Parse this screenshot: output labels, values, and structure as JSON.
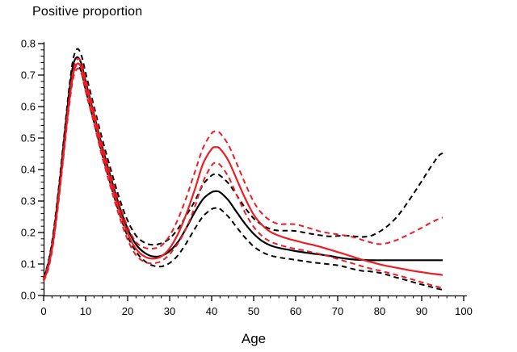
{
  "chart_data": {
    "type": "line",
    "title": "Positive proportion",
    "xlabel": "Age",
    "ylabel": "",
    "xlim": [
      0,
      100
    ],
    "ylim": [
      0.0,
      0.8
    ],
    "grid": false,
    "legend": "none",
    "x_tick_labels": [
      "0",
      "10",
      "20",
      "30",
      "40",
      "50",
      "60",
      "70",
      "80",
      "90",
      "100"
    ],
    "y_tick_labels": [
      "0.0",
      "0.1",
      "0.2",
      "0.3",
      "0.4",
      "0.5",
      "0.6",
      "0.7",
      "0.8"
    ],
    "x_minor_step": 2,
    "y_minor_step": 0.02,
    "axis_color": "#000000",
    "colors": {
      "black_series": "#000000",
      "red_series": "#ee1c23"
    },
    "x": [
      0,
      1,
      2,
      3,
      4,
      5,
      6,
      7,
      8,
      9,
      10,
      12,
      14,
      16,
      18,
      20,
      22,
      24,
      26,
      28,
      30,
      32,
      34,
      36,
      38,
      40,
      41,
      42,
      44,
      46,
      48,
      50,
      52,
      54,
      56,
      58,
      60,
      62,
      64,
      66,
      68,
      70,
      72,
      74,
      76,
      78,
      80,
      82,
      84,
      86,
      88,
      90,
      92,
      94,
      95
    ],
    "series": [
      {
        "name": "black-estimate",
        "style": "solid",
        "color": "#000000",
        "values": [
          0.052,
          0.095,
          0.16,
          0.26,
          0.38,
          0.51,
          0.635,
          0.73,
          0.757,
          0.735,
          0.68,
          0.575,
          0.47,
          0.375,
          0.285,
          0.212,
          0.162,
          0.136,
          0.124,
          0.126,
          0.141,
          0.17,
          0.215,
          0.265,
          0.307,
          0.328,
          0.331,
          0.328,
          0.302,
          0.264,
          0.227,
          0.196,
          0.173,
          0.159,
          0.151,
          0.146,
          0.141,
          0.137,
          0.133,
          0.13,
          0.126,
          0.121,
          0.117,
          0.114,
          0.113,
          0.112,
          0.112,
          0.112,
          0.112,
          0.112,
          0.112,
          0.112,
          0.112,
          0.112,
          0.112
        ]
      },
      {
        "name": "black-upper-band",
        "style": "dashed",
        "color": "#000000",
        "values": [
          0.056,
          0.1,
          0.17,
          0.272,
          0.393,
          0.523,
          0.65,
          0.748,
          0.783,
          0.762,
          0.707,
          0.6,
          0.495,
          0.4,
          0.31,
          0.238,
          0.19,
          0.168,
          0.161,
          0.166,
          0.181,
          0.212,
          0.255,
          0.3,
          0.353,
          0.381,
          0.385,
          0.381,
          0.356,
          0.318,
          0.278,
          0.245,
          0.224,
          0.211,
          0.206,
          0.206,
          0.205,
          0.2,
          0.195,
          0.191,
          0.188,
          0.189,
          0.19,
          0.188,
          0.186,
          0.19,
          0.203,
          0.222,
          0.248,
          0.283,
          0.322,
          0.363,
          0.405,
          0.443,
          0.452
        ]
      },
      {
        "name": "black-lower-band",
        "style": "dashed",
        "color": "#000000",
        "values": [
          0.048,
          0.088,
          0.15,
          0.248,
          0.367,
          0.495,
          0.617,
          0.708,
          0.731,
          0.71,
          0.653,
          0.55,
          0.445,
          0.35,
          0.262,
          0.188,
          0.139,
          0.11,
          0.095,
          0.092,
          0.103,
          0.128,
          0.167,
          0.212,
          0.252,
          0.274,
          0.278,
          0.275,
          0.25,
          0.216,
          0.183,
          0.156,
          0.138,
          0.127,
          0.121,
          0.117,
          0.113,
          0.109,
          0.105,
          0.102,
          0.099,
          0.096,
          0.09,
          0.083,
          0.078,
          0.076,
          0.072,
          0.065,
          0.057,
          0.05,
          0.042,
          0.035,
          0.028,
          0.021,
          0.018
        ]
      },
      {
        "name": "red-estimate",
        "style": "solid",
        "color": "#ee1c23",
        "values": [
          0.048,
          0.085,
          0.148,
          0.243,
          0.36,
          0.483,
          0.605,
          0.7,
          0.736,
          0.722,
          0.668,
          0.567,
          0.457,
          0.362,
          0.272,
          0.197,
          0.148,
          0.124,
          0.117,
          0.124,
          0.15,
          0.196,
          0.26,
          0.337,
          0.42,
          0.465,
          0.471,
          0.466,
          0.428,
          0.368,
          0.308,
          0.257,
          0.224,
          0.202,
          0.19,
          0.181,
          0.174,
          0.167,
          0.161,
          0.154,
          0.146,
          0.138,
          0.13,
          0.121,
          0.113,
          0.106,
          0.099,
          0.093,
          0.088,
          0.083,
          0.078,
          0.074,
          0.07,
          0.067,
          0.065
        ]
      },
      {
        "name": "red-upper-band",
        "style": "dashed",
        "color": "#ee1c23",
        "values": [
          0.052,
          0.092,
          0.156,
          0.252,
          0.37,
          0.494,
          0.617,
          0.712,
          0.75,
          0.74,
          0.688,
          0.588,
          0.478,
          0.383,
          0.293,
          0.218,
          0.17,
          0.152,
          0.149,
          0.158,
          0.19,
          0.243,
          0.312,
          0.392,
          0.47,
          0.515,
          0.521,
          0.516,
          0.478,
          0.418,
          0.355,
          0.298,
          0.26,
          0.238,
          0.227,
          0.227,
          0.226,
          0.219,
          0.211,
          0.203,
          0.198,
          0.194,
          0.19,
          0.184,
          0.176,
          0.168,
          0.163,
          0.167,
          0.176,
          0.188,
          0.201,
          0.215,
          0.23,
          0.243,
          0.248
        ]
      },
      {
        "name": "red-lower-band",
        "style": "dashed",
        "color": "#ee1c23",
        "values": [
          0.045,
          0.079,
          0.14,
          0.234,
          0.35,
          0.472,
          0.592,
          0.687,
          0.72,
          0.705,
          0.648,
          0.546,
          0.437,
          0.342,
          0.252,
          0.177,
          0.128,
          0.107,
          0.102,
          0.109,
          0.131,
          0.166,
          0.215,
          0.282,
          0.362,
          0.413,
          0.421,
          0.415,
          0.377,
          0.318,
          0.262,
          0.218,
          0.189,
          0.171,
          0.161,
          0.154,
          0.148,
          0.143,
          0.137,
          0.131,
          0.124,
          0.116,
          0.108,
          0.1,
          0.092,
          0.085,
          0.079,
          0.072,
          0.065,
          0.058,
          0.05,
          0.042,
          0.034,
          0.027,
          0.025
        ]
      }
    ]
  }
}
